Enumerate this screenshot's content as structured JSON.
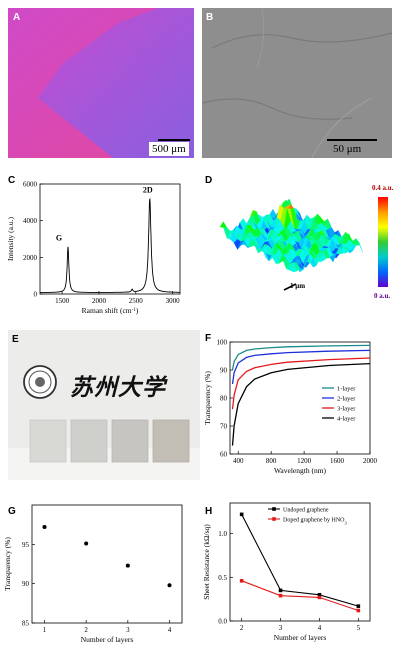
{
  "panels": {
    "A": {
      "label": "A",
      "scale_bar": "500 μm"
    },
    "B": {
      "label": "B",
      "scale_bar": "50 μm"
    },
    "C": {
      "label": "C"
    },
    "D": {
      "label": "D",
      "scale_label": "1 μm",
      "colorbar_max": "0.4 a.u.",
      "colorbar_min": "0 a.u."
    },
    "E": {
      "label": "E",
      "calligraphy": "苏州大学"
    },
    "F": {
      "label": "F"
    },
    "G": {
      "label": "G"
    },
    "H": {
      "label": "H"
    }
  },
  "colors": {
    "black": "#000000",
    "blue": "#1f2fd8",
    "red": "#e31a1c",
    "teal": "#1a8a8a"
  },
  "chart_data": [
    {
      "id": "C",
      "type": "line",
      "xlabel": "Raman shift (cm",
      "xlabel_sup": "-1",
      "xlabel_end": ")",
      "ylabel": "Intensity (a.u.)",
      "xlim": [
        1200,
        3100
      ],
      "ylim": [
        0,
        6000
      ],
      "xticks": [
        1500,
        2000,
        2500,
        3000
      ],
      "yticks": [
        0,
        2000,
        4000,
        6000
      ],
      "annotations": [
        {
          "text": "G",
          "x": 1580,
          "y": 2600
        },
        {
          "text": "2D",
          "x": 2690,
          "y": 5200
        }
      ],
      "peaks": [
        {
          "center": 1580,
          "height": 2500,
          "width": 14
        },
        {
          "center": 2690,
          "height": 5100,
          "width": 20
        },
        {
          "center": 2450,
          "height": 150,
          "width": 12
        }
      ],
      "baseline": 80
    },
    {
      "id": "F",
      "type": "line",
      "xlabel": "Wavelength (nm)",
      "ylabel": "Transparency (%)",
      "xlim": [
        300,
        2000
      ],
      "ylim": [
        60,
        100
      ],
      "xticks": [
        400,
        800,
        1200,
        1600,
        2000
      ],
      "yticks": [
        60,
        70,
        80,
        90,
        100
      ],
      "legend_position": "right",
      "series": [
        {
          "name": "1-layer",
          "color": "#1a8a8a",
          "x": [
            330,
            350,
            400,
            500,
            600,
            800,
            1000,
            1500,
            2000
          ],
          "y": [
            90,
            93,
            95.5,
            97,
            97.5,
            98,
            98.3,
            98.6,
            98.8
          ]
        },
        {
          "name": "2-layer",
          "color": "#1f2fd8",
          "x": [
            330,
            350,
            400,
            500,
            600,
            800,
            1000,
            1500,
            2000
          ],
          "y": [
            85,
            89,
            92.5,
            94.5,
            95.2,
            95.8,
            96.2,
            96.7,
            97
          ]
        },
        {
          "name": "3-layer",
          "color": "#e31a1c",
          "x": [
            330,
            350,
            400,
            500,
            600,
            800,
            1000,
            1500,
            2000
          ],
          "y": [
            76,
            81,
            86.5,
            89.5,
            90.8,
            92,
            92.8,
            93.7,
            94.3
          ]
        },
        {
          "name": "4-layer",
          "color": "#000000",
          "x": [
            330,
            350,
            400,
            500,
            600,
            800,
            1000,
            1500,
            2000
          ],
          "y": [
            63,
            70,
            78,
            84,
            86.8,
            89,
            90.2,
            91.6,
            92.3
          ]
        }
      ]
    },
    {
      "id": "G",
      "type": "scatter",
      "xlabel": "Number of layers",
      "ylabel": "Transparency (%)",
      "xlim": [
        0.7,
        4.3
      ],
      "ylim": [
        85,
        100
      ],
      "xticks": [
        1,
        2,
        3,
        4
      ],
      "yticks": [
        85,
        90,
        95
      ],
      "x": [
        1,
        2,
        3,
        4
      ],
      "y": [
        97.2,
        95.1,
        92.3,
        89.8
      ]
    },
    {
      "id": "H",
      "type": "line",
      "xlabel": "Number of layers",
      "ylabel": "Sheet Resistance (kΩ/sq)",
      "xlim": [
        1.7,
        5.3
      ],
      "ylim": [
        0,
        1.35
      ],
      "xticks": [
        2,
        3,
        4,
        5
      ],
      "yticks": [
        0.0,
        0.5,
        1.0
      ],
      "ytick_labels": [
        "0.0",
        "0.5",
        "1.0"
      ],
      "legend_position": "top-right",
      "series": [
        {
          "name": "Undoped graphene",
          "color": "#000000",
          "x": [
            2,
            3,
            4,
            5
          ],
          "y": [
            1.22,
            0.35,
            0.3,
            0.17
          ]
        },
        {
          "name": "Doped graphene by HNO",
          "name_sub": "3",
          "color": "#e31a1c",
          "x": [
            2,
            3,
            4,
            5
          ],
          "y": [
            0.46,
            0.29,
            0.27,
            0.12
          ]
        }
      ]
    }
  ]
}
